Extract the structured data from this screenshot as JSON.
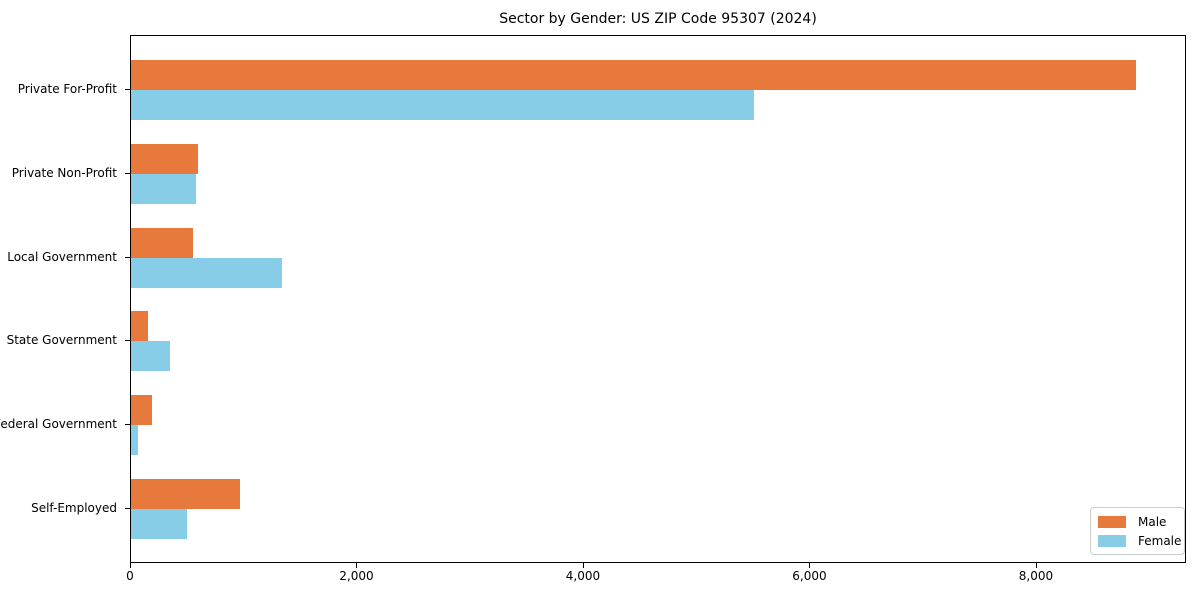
{
  "title": "Sector by Gender: US ZIP Code 95307 (2024)",
  "chart_data": {
    "type": "bar",
    "orientation": "horizontal",
    "title": "Sector by Gender: US ZIP Code 95307 (2024)",
    "categories": [
      "Private For-Profit",
      "Private Non-Profit",
      "Local Government",
      "State Government",
      "Federal Government",
      "Self-Employed"
    ],
    "series": [
      {
        "name": "Male",
        "color": "#E8793D",
        "values": [
          8890,
          590,
          550,
          150,
          185,
          965
        ]
      },
      {
        "name": "Female",
        "color": "#87CDE8",
        "values": [
          5510,
          575,
          1335,
          345,
          60,
          495
        ]
      }
    ],
    "xlabel": "",
    "ylabel": "",
    "xlim": [
      0,
      9325
    ],
    "xticks": [
      {
        "value": 0,
        "label": "0"
      },
      {
        "value": 2000,
        "label": "2,000"
      },
      {
        "value": 4000,
        "label": "4,000"
      },
      {
        "value": 6000,
        "label": "6,000"
      },
      {
        "value": 8000,
        "label": "8,000"
      }
    ],
    "grid": false,
    "legend_position": "lower right"
  }
}
